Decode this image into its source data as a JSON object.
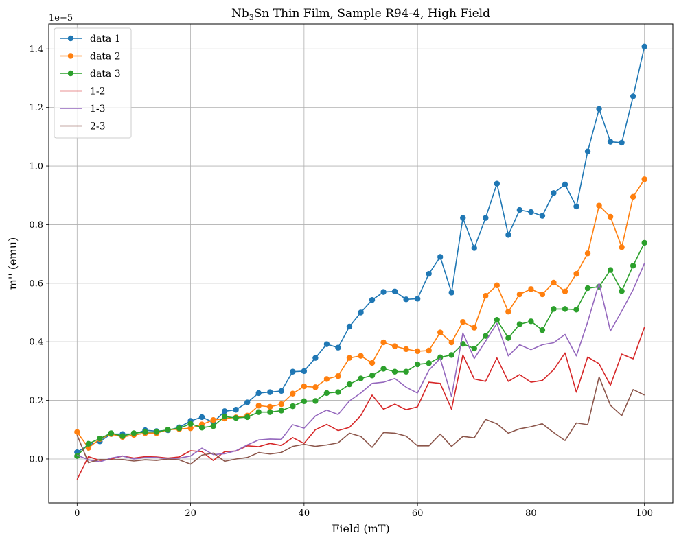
{
  "chart_data": {
    "type": "line",
    "title": {
      "prefix": "Nb",
      "subscript": "3",
      "suffix": "Sn Thin Film, Sample R94-4, High Field"
    },
    "xlabel": "Field (mT)",
    "ylabel": "m'' (emu)",
    "y_offset_text": "1e−5",
    "y_scale_exponent": -5,
    "xlim": [
      -5,
      105
    ],
    "ylim": [
      -0.15,
      1.485
    ],
    "x_ticks": [
      0,
      20,
      40,
      60,
      80,
      100
    ],
    "x_tick_labels": [
      "0",
      "20",
      "40",
      "60",
      "80",
      "100"
    ],
    "y_ticks": [
      0.0,
      0.2,
      0.4,
      0.6,
      0.8,
      1.0,
      1.2,
      1.4
    ],
    "y_tick_labels": [
      "0.0",
      "0.2",
      "0.4",
      "0.6",
      "0.8",
      "1.0",
      "1.2",
      "1.4"
    ],
    "grid": true,
    "legend_position": "top-left",
    "x": [
      0,
      2,
      4,
      6,
      8,
      10,
      12,
      14,
      16,
      18,
      20,
      22,
      24,
      26,
      28,
      30,
      32,
      34,
      36,
      38,
      40,
      42,
      44,
      46,
      48,
      50,
      52,
      54,
      56,
      58,
      60,
      62,
      64,
      66,
      68,
      70,
      72,
      74,
      76,
      78,
      80,
      82,
      84,
      86,
      88,
      90,
      92,
      94,
      96,
      98,
      100
    ],
    "series": [
      {
        "name": "data 1",
        "color": "#1f77b4",
        "marker": true,
        "values": [
          0.023,
          0.048,
          0.06,
          0.085,
          0.085,
          0.085,
          0.098,
          0.095,
          0.098,
          0.108,
          0.13,
          0.143,
          0.125,
          0.163,
          0.168,
          0.193,
          0.225,
          0.228,
          0.232,
          0.298,
          0.3,
          0.345,
          0.392,
          0.38,
          0.452,
          0.5,
          0.543,
          0.57,
          0.572,
          0.545,
          0.547,
          0.632,
          0.69,
          0.568,
          0.823,
          0.72,
          0.823,
          0.94,
          0.765,
          0.85,
          0.843,
          0.83,
          0.908,
          0.937,
          0.862,
          1.05,
          1.195,
          1.083,
          1.08,
          1.238,
          1.408
        ]
      },
      {
        "name": "data 2",
        "color": "#ff7f0e",
        "marker": true,
        "values": [
          0.092,
          0.038,
          0.068,
          0.085,
          0.075,
          0.082,
          0.088,
          0.088,
          0.1,
          0.102,
          0.105,
          0.118,
          0.133,
          0.138,
          0.142,
          0.148,
          0.182,
          0.178,
          0.187,
          0.223,
          0.248,
          0.245,
          0.273,
          0.283,
          0.345,
          0.352,
          0.328,
          0.398,
          0.385,
          0.375,
          0.368,
          0.37,
          0.432,
          0.398,
          0.468,
          0.448,
          0.557,
          0.593,
          0.503,
          0.562,
          0.58,
          0.562,
          0.602,
          0.572,
          0.632,
          0.702,
          0.865,
          0.827,
          0.723,
          0.895,
          0.955
        ]
      },
      {
        "name": "data 3",
        "color": "#2ca02c",
        "marker": true,
        "values": [
          0.01,
          0.052,
          0.07,
          0.088,
          0.078,
          0.088,
          0.092,
          0.092,
          0.1,
          0.105,
          0.12,
          0.107,
          0.112,
          0.145,
          0.14,
          0.143,
          0.16,
          0.16,
          0.165,
          0.18,
          0.197,
          0.198,
          0.225,
          0.228,
          0.255,
          0.275,
          0.285,
          0.308,
          0.298,
          0.298,
          0.323,
          0.327,
          0.347,
          0.355,
          0.393,
          0.377,
          0.42,
          0.475,
          0.413,
          0.46,
          0.47,
          0.44,
          0.512,
          0.512,
          0.51,
          0.583,
          0.588,
          0.645,
          0.573,
          0.66,
          0.738
        ]
      },
      {
        "name": "1-2",
        "color": "#d62728",
        "marker": false,
        "values": [
          -0.07,
          0.008,
          -0.005,
          0.0,
          0.01,
          0.003,
          0.008,
          0.007,
          0.003,
          0.007,
          0.028,
          0.025,
          -0.005,
          0.025,
          0.027,
          0.045,
          0.042,
          0.053,
          0.046,
          0.073,
          0.053,
          0.1,
          0.118,
          0.097,
          0.108,
          0.148,
          0.218,
          0.17,
          0.187,
          0.168,
          0.178,
          0.262,
          0.258,
          0.17,
          0.355,
          0.273,
          0.265,
          0.345,
          0.265,
          0.288,
          0.262,
          0.268,
          0.305,
          0.362,
          0.228,
          0.348,
          0.325,
          0.252,
          0.358,
          0.342,
          0.45
        ]
      },
      {
        "name": "1-3",
        "color": "#9467bd",
        "marker": false,
        "values": [
          0.013,
          -0.003,
          -0.01,
          0.003,
          0.01,
          0.0,
          0.005,
          0.005,
          0.0,
          0.003,
          0.01,
          0.037,
          0.015,
          0.018,
          0.028,
          0.048,
          0.065,
          0.068,
          0.067,
          0.117,
          0.105,
          0.147,
          0.167,
          0.152,
          0.198,
          0.225,
          0.258,
          0.262,
          0.275,
          0.245,
          0.225,
          0.303,
          0.343,
          0.213,
          0.43,
          0.343,
          0.402,
          0.463,
          0.352,
          0.39,
          0.373,
          0.39,
          0.397,
          0.425,
          0.352,
          0.468,
          0.6,
          0.437,
          0.505,
          0.578,
          0.668
        ]
      },
      {
        "name": "2-3",
        "color": "#8c564b",
        "marker": false,
        "values": [
          0.082,
          -0.013,
          -0.002,
          -0.003,
          -0.002,
          -0.007,
          -0.003,
          -0.005,
          0.0,
          -0.003,
          -0.018,
          0.013,
          0.02,
          -0.008,
          0.0,
          0.005,
          0.022,
          0.017,
          0.022,
          0.043,
          0.05,
          0.043,
          0.048,
          0.055,
          0.088,
          0.077,
          0.04,
          0.09,
          0.088,
          0.078,
          0.045,
          0.045,
          0.085,
          0.043,
          0.077,
          0.072,
          0.135,
          0.12,
          0.088,
          0.103,
          0.11,
          0.12,
          0.09,
          0.063,
          0.123,
          0.117,
          0.28,
          0.183,
          0.148,
          0.237,
          0.218
        ]
      }
    ]
  }
}
